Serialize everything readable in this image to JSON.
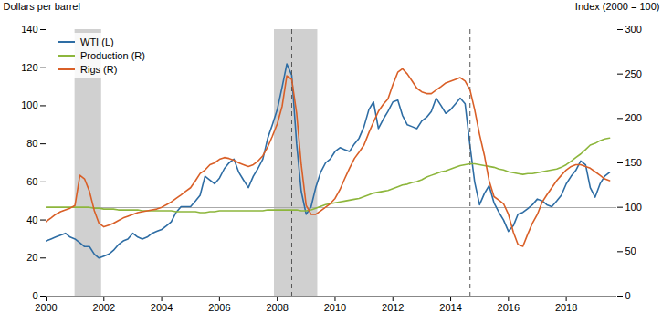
{
  "chart_data": {
    "type": "line",
    "ylabel": "Dollars per barrel",
    "y2label": "Index (2000 = 100)",
    "xlim": [
      2000,
      2019.75
    ],
    "xticks": [
      2000,
      2002,
      2004,
      2006,
      2008,
      2010,
      2012,
      2014,
      2016,
      2018
    ],
    "ylim": [
      0,
      140
    ],
    "yticks": [
      0,
      20,
      40,
      60,
      80,
      100,
      120,
      140
    ],
    "y2lim": [
      0,
      300
    ],
    "y2ticks": [
      0,
      50,
      100,
      150,
      200,
      250,
      300
    ],
    "grid": false,
    "legend": "upper left",
    "x": [
      2000.0,
      2000.17,
      2000.33,
      2000.5,
      2000.67,
      2000.83,
      2001.0,
      2001.17,
      2001.33,
      2001.5,
      2001.67,
      2001.83,
      2002.0,
      2002.17,
      2002.33,
      2002.5,
      2002.67,
      2002.83,
      2003.0,
      2003.17,
      2003.33,
      2003.5,
      2003.67,
      2003.83,
      2004.0,
      2004.17,
      2004.33,
      2004.5,
      2004.67,
      2004.83,
      2005.0,
      2005.17,
      2005.33,
      2005.5,
      2005.67,
      2005.83,
      2006.0,
      2006.17,
      2006.33,
      2006.5,
      2006.67,
      2006.83,
      2007.0,
      2007.17,
      2007.33,
      2007.5,
      2007.67,
      2007.83,
      2008.0,
      2008.17,
      2008.33,
      2008.5,
      2008.67,
      2008.83,
      2009.0,
      2009.17,
      2009.33,
      2009.5,
      2009.67,
      2009.83,
      2010.0,
      2010.17,
      2010.33,
      2010.5,
      2010.67,
      2010.83,
      2011.0,
      2011.17,
      2011.33,
      2011.5,
      2011.67,
      2011.83,
      2012.0,
      2012.17,
      2012.33,
      2012.5,
      2012.67,
      2012.83,
      2013.0,
      2013.17,
      2013.33,
      2013.5,
      2013.67,
      2013.83,
      2014.0,
      2014.17,
      2014.33,
      2014.5,
      2014.67,
      2014.83,
      2015.0,
      2015.17,
      2015.33,
      2015.5,
      2015.67,
      2015.83,
      2016.0,
      2016.17,
      2016.33,
      2016.5,
      2016.67,
      2016.83,
      2017.0,
      2017.17,
      2017.33,
      2017.5,
      2017.67,
      2017.83,
      2018.0,
      2018.17,
      2018.33,
      2018.5,
      2018.67,
      2018.83,
      2019.0,
      2019.17,
      2019.33,
      2019.5
    ],
    "series": [
      {
        "name": "WTI (L)",
        "color": "#2E6DA4",
        "axis": "y",
        "values": [
          29,
          30,
          31,
          32,
          33,
          31,
          30,
          28,
          26,
          26,
          22,
          20,
          21,
          22,
          24,
          27,
          29,
          30,
          33,
          31,
          30,
          31,
          33,
          34,
          35,
          37,
          39,
          44,
          47,
          47,
          47,
          50,
          53,
          63,
          61,
          59,
          62,
          67,
          70,
          72,
          65,
          61,
          57,
          63,
          67,
          72,
          83,
          90,
          98,
          110,
          122,
          116,
          80,
          55,
          43,
          47,
          57,
          65,
          70,
          72,
          76,
          78,
          77,
          76,
          80,
          83,
          89,
          98,
          102,
          88,
          93,
          97,
          102,
          103,
          95,
          90,
          89,
          88,
          92,
          94,
          97,
          104,
          100,
          96,
          98,
          101,
          104,
          101,
          79,
          60,
          48,
          54,
          58,
          49,
          44,
          40,
          34,
          37,
          43,
          44,
          46,
          48,
          51,
          50,
          48,
          47,
          50,
          53,
          59,
          63,
          66,
          71,
          69,
          57,
          52,
          59,
          63,
          65
        ]
      },
      {
        "name": "Production (R)",
        "color": "#8DB63C",
        "axis": "y2",
        "values": [
          100,
          100,
          100,
          100,
          100,
          100,
          100,
          100,
          100,
          100,
          99,
          99,
          98,
          98,
          98,
          97,
          97,
          97,
          97,
          97,
          96,
          96,
          96,
          96,
          96,
          96,
          96,
          95,
          95,
          95,
          95,
          95,
          94,
          94,
          95,
          95,
          96,
          96,
          96,
          96,
          96,
          96,
          96,
          96,
          96,
          96,
          97,
          97,
          97,
          97,
          97,
          97,
          97,
          96,
          96,
          97,
          99,
          101,
          103,
          104,
          105,
          106,
          107,
          108,
          109,
          110,
          112,
          114,
          116,
          117,
          118,
          119,
          121,
          123,
          125,
          126,
          128,
          129,
          131,
          134,
          136,
          138,
          140,
          141,
          143,
          145,
          147,
          148,
          149,
          149,
          148,
          147,
          146,
          145,
          143,
          142,
          140,
          139,
          138,
          137,
          138,
          138,
          139,
          140,
          141,
          142,
          143,
          145,
          148,
          152,
          156,
          160,
          165,
          170,
          172,
          175,
          177,
          178
        ]
      },
      {
        "name": "Rigs (R)",
        "color": "#D95F27",
        "axis": "y2",
        "values": [
          84,
          88,
          92,
          95,
          97,
          99,
          102,
          136,
          132,
          118,
          96,
          82,
          78,
          80,
          82,
          85,
          88,
          90,
          92,
          94,
          95,
          96,
          97,
          98,
          100,
          103,
          106,
          110,
          114,
          118,
          122,
          130,
          138,
          142,
          148,
          150,
          154,
          156,
          155,
          153,
          150,
          148,
          146,
          148,
          152,
          158,
          168,
          180,
          194,
          214,
          248,
          244,
          206,
          148,
          102,
          92,
          92,
          96,
          100,
          104,
          110,
          120,
          132,
          144,
          155,
          162,
          170,
          184,
          196,
          208,
          216,
          222,
          238,
          252,
          256,
          250,
          242,
          234,
          230,
          228,
          228,
          232,
          236,
          240,
          242,
          244,
          246,
          242,
          232,
          210,
          182,
          158,
          130,
          112,
          108,
          104,
          92,
          72,
          58,
          56,
          70,
          82,
          92,
          106,
          114,
          122,
          130,
          136,
          142,
          146,
          148,
          148,
          146,
          144,
          140,
          136,
          132,
          130
        ]
      }
    ],
    "bands": {
      "values": [
        [
          2001.0,
          2001.92
        ],
        [
          2007.9,
          2009.4
        ]
      ],
      "color": "#d0d0d0"
    },
    "hline": {
      "value": 46.5,
      "color": "#aaaaaa",
      "axis": "y"
    },
    "vlines": {
      "values": [
        2008.5,
        2014.67
      ],
      "color": "#555555",
      "line_style": "dashed"
    }
  }
}
